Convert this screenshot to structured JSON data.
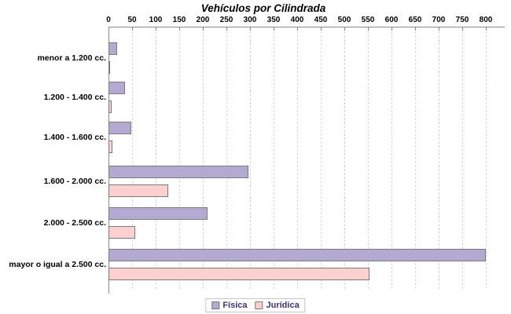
{
  "chart_data": {
    "type": "bar",
    "orientation": "horizontal",
    "title": "Vehículos por Cilindrada",
    "categories": [
      "menor a 1.200 cc.",
      "1.200 - 1.400 cc.",
      "1.400 - 1.600 cc.",
      "1.600 - 2.000 cc.",
      "2.000 - 2.500 cc.",
      "mayor o igual a 2.500 cc."
    ],
    "series": [
      {
        "name": "Física",
        "color": "#b3aad2",
        "values": [
          19,
          35,
          48,
          297,
          210,
          800
        ]
      },
      {
        "name": "Jurídica",
        "color": "#fdd0d0",
        "values": [
          3,
          6,
          8,
          127,
          57,
          554
        ]
      }
    ],
    "value_axis": {
      "position": "top",
      "min": 0,
      "max": 800,
      "tick_interval": 50,
      "ticks": [
        0,
        50,
        100,
        150,
        200,
        250,
        300,
        350,
        400,
        450,
        500,
        550,
        600,
        650,
        700,
        750,
        800
      ]
    },
    "grid": "dashed-vertical",
    "legend": {
      "position": "bottom"
    },
    "colors": {
      "background": "#ffffff",
      "bar_border": "#7a7a7a",
      "axis": "#8a8a8a",
      "gridline": "#d9d9d9",
      "title_text": "#000000",
      "legend_text": "#3f3180"
    }
  }
}
